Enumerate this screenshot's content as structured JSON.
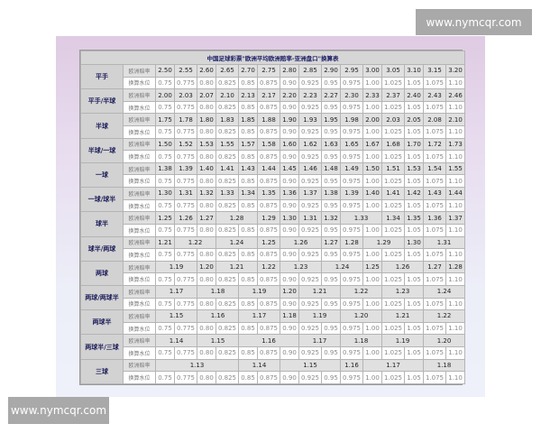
{
  "watermark": "www.nymcqr.com",
  "table": {
    "title": "中国足球彩票\"欧洲平均欧洲赔率-亚洲盘口\"换算表",
    "odds_label": "欧洲赔率",
    "water_label": "换算水位",
    "water": [
      "0.75",
      "0.775",
      "0.80",
      "0.825",
      "0.85",
      "0.875",
      "0.90",
      "0.925",
      "0.95",
      "0.975",
      "1.00",
      "1.025",
      "1.05",
      "1.075",
      "1.10"
    ],
    "groups": [
      {
        "label": "平手",
        "odds": [
          {
            "v": "2.50",
            "s": 1
          },
          {
            "v": "2.55",
            "s": 1
          },
          {
            "v": "2.60",
            "s": 1
          },
          {
            "v": "2.65",
            "s": 1
          },
          {
            "v": "2.70",
            "s": 1
          },
          {
            "v": "2.75",
            "s": 1
          },
          {
            "v": "2.80",
            "s": 1
          },
          {
            "v": "2.85",
            "s": 1
          },
          {
            "v": "2.90",
            "s": 1
          },
          {
            "v": "2.95",
            "s": 1
          },
          {
            "v": "3.00",
            "s": 1
          },
          {
            "v": "3.05",
            "s": 1
          },
          {
            "v": "3.10",
            "s": 1
          },
          {
            "v": "3.15",
            "s": 1
          },
          {
            "v": "3.20",
            "s": 1
          }
        ]
      },
      {
        "label": "平手/半球",
        "odds": [
          {
            "v": "2.00",
            "s": 1
          },
          {
            "v": "2.03",
            "s": 1
          },
          {
            "v": "2.07",
            "s": 1
          },
          {
            "v": "2.10",
            "s": 1
          },
          {
            "v": "2.13",
            "s": 1
          },
          {
            "v": "2.17",
            "s": 1
          },
          {
            "v": "2.20",
            "s": 1
          },
          {
            "v": "2.23",
            "s": 1
          },
          {
            "v": "2.27",
            "s": 1
          },
          {
            "v": "2.30",
            "s": 1
          },
          {
            "v": "2.33",
            "s": 1
          },
          {
            "v": "2.37",
            "s": 1
          },
          {
            "v": "2.40",
            "s": 1
          },
          {
            "v": "2.43",
            "s": 1
          },
          {
            "v": "2.46",
            "s": 1
          }
        ]
      },
      {
        "label": "半球",
        "odds": [
          {
            "v": "1.75",
            "s": 1
          },
          {
            "v": "1.78",
            "s": 1
          },
          {
            "v": "1.80",
            "s": 1
          },
          {
            "v": "1.83",
            "s": 1
          },
          {
            "v": "1.85",
            "s": 1
          },
          {
            "v": "1.88",
            "s": 1
          },
          {
            "v": "1.90",
            "s": 1
          },
          {
            "v": "1.93",
            "s": 1
          },
          {
            "v": "1.95",
            "s": 1
          },
          {
            "v": "1.98",
            "s": 1
          },
          {
            "v": "2.00",
            "s": 1
          },
          {
            "v": "2.03",
            "s": 1
          },
          {
            "v": "2.05",
            "s": 1
          },
          {
            "v": "2.08",
            "s": 1
          },
          {
            "v": "2.10",
            "s": 1
          }
        ]
      },
      {
        "label": "半球/一球",
        "odds": [
          {
            "v": "1.50",
            "s": 1
          },
          {
            "v": "1.52",
            "s": 1
          },
          {
            "v": "1.53",
            "s": 1
          },
          {
            "v": "1.55",
            "s": 1
          },
          {
            "v": "1.57",
            "s": 1
          },
          {
            "v": "1.58",
            "s": 1
          },
          {
            "v": "1.60",
            "s": 1
          },
          {
            "v": "1.62",
            "s": 1
          },
          {
            "v": "1.63",
            "s": 1
          },
          {
            "v": "1.65",
            "s": 1
          },
          {
            "v": "1.67",
            "s": 1
          },
          {
            "v": "1.68",
            "s": 1
          },
          {
            "v": "1.70",
            "s": 1
          },
          {
            "v": "1.72",
            "s": 1
          },
          {
            "v": "1.73",
            "s": 1
          }
        ]
      },
      {
        "label": "一球",
        "odds": [
          {
            "v": "1.38",
            "s": 1
          },
          {
            "v": "1.39",
            "s": 1
          },
          {
            "v": "1.40",
            "s": 1
          },
          {
            "v": "1.41",
            "s": 1
          },
          {
            "v": "1.43",
            "s": 1
          },
          {
            "v": "1.44",
            "s": 1
          },
          {
            "v": "1.45",
            "s": 1
          },
          {
            "v": "1.46",
            "s": 1
          },
          {
            "v": "1.48",
            "s": 1
          },
          {
            "v": "1.49",
            "s": 1
          },
          {
            "v": "1.50",
            "s": 1
          },
          {
            "v": "1.51",
            "s": 1
          },
          {
            "v": "1.53",
            "s": 1
          },
          {
            "v": "1.54",
            "s": 1
          },
          {
            "v": "1.55",
            "s": 1
          }
        ]
      },
      {
        "label": "一球/球半",
        "odds": [
          {
            "v": "1.30",
            "s": 1
          },
          {
            "v": "1.31",
            "s": 1
          },
          {
            "v": "1.32",
            "s": 1
          },
          {
            "v": "1.33",
            "s": 1
          },
          {
            "v": "1.34",
            "s": 1
          },
          {
            "v": "1.35",
            "s": 1
          },
          {
            "v": "1.36",
            "s": 1
          },
          {
            "v": "1.37",
            "s": 1
          },
          {
            "v": "1.38",
            "s": 1
          },
          {
            "v": "1.39",
            "s": 1
          },
          {
            "v": "1.40",
            "s": 1
          },
          {
            "v": "1.41",
            "s": 1
          },
          {
            "v": "1.42",
            "s": 1
          },
          {
            "v": "1.43",
            "s": 1
          },
          {
            "v": "1.44",
            "s": 1
          }
        ]
      },
      {
        "label": "球半",
        "odds": [
          {
            "v": "1.25",
            "s": 1
          },
          {
            "v": "1.26",
            "s": 1
          },
          {
            "v": "1.27",
            "s": 1
          },
          {
            "v": "1.28",
            "s": 2
          },
          {
            "v": "1.29",
            "s": 1
          },
          {
            "v": "1.30",
            "s": 1
          },
          {
            "v": "1.31",
            "s": 1
          },
          {
            "v": "1.32",
            "s": 1
          },
          {
            "v": "1.33",
            "s": 2
          },
          {
            "v": "1.34",
            "s": 1
          },
          {
            "v": "1.35",
            "s": 1
          },
          {
            "v": "1.36",
            "s": 1
          },
          {
            "v": "1.37",
            "s": 1
          }
        ]
      },
      {
        "label": "球半/两球",
        "odds": [
          {
            "v": "1.21",
            "s": 1
          },
          {
            "v": "1.22",
            "s": 2
          },
          {
            "v": "1.24",
            "s": 2
          },
          {
            "v": "1.25",
            "s": 1
          },
          {
            "v": "1.26",
            "s": 2
          },
          {
            "v": "1.27",
            "s": 1
          },
          {
            "v": "1.28",
            "s": 1
          },
          {
            "v": "1.29",
            "s": 2
          },
          {
            "v": "1.30",
            "s": 1
          },
          {
            "v": "1.31",
            "s": 2
          }
        ]
      },
      {
        "label": "两球",
        "odds": [
          {
            "v": "1.19",
            "s": 2
          },
          {
            "v": "1.20",
            "s": 1
          },
          {
            "v": "1.21",
            "s": 2
          },
          {
            "v": "1.22",
            "s": 1
          },
          {
            "v": "1.23",
            "s": 2
          },
          {
            "v": "1.24",
            "s": 2
          },
          {
            "v": "1.25",
            "s": 1
          },
          {
            "v": "1.26",
            "s": 2
          },
          {
            "v": "1.27",
            "s": 1
          },
          {
            "v": "1.28",
            "s": 1
          }
        ]
      },
      {
        "label": "两球/两球半",
        "odds": [
          {
            "v": "1.17",
            "s": 2
          },
          {
            "v": "1.18",
            "s": 2
          },
          {
            "v": "1.19",
            "s": 2
          },
          {
            "v": "1.20",
            "s": 1
          },
          {
            "v": "1.21",
            "s": 2
          },
          {
            "v": "1.22",
            "s": 2
          },
          {
            "v": "1.23",
            "s": 2
          },
          {
            "v": "1.24",
            "s": 2
          }
        ]
      },
      {
        "label": "两球半",
        "odds": [
          {
            "v": "1.15",
            "s": 2
          },
          {
            "v": "1.16",
            "s": 2
          },
          {
            "v": "1.17",
            "s": 2
          },
          {
            "v": "1.18",
            "s": 1
          },
          {
            "v": "1.19",
            "s": 2
          },
          {
            "v": "1.20",
            "s": 2
          },
          {
            "v": "1.21",
            "s": 2
          },
          {
            "v": "1.22",
            "s": 2
          }
        ]
      },
      {
        "label": "两球半/三球",
        "odds": [
          {
            "v": "1.14",
            "s": 2
          },
          {
            "v": "1.15",
            "s": 2
          },
          {
            "v": "1.16",
            "s": 3
          },
          {
            "v": "1.17",
            "s": 2
          },
          {
            "v": "1.18",
            "s": 2
          },
          {
            "v": "1.19",
            "s": 2
          },
          {
            "v": "1.20",
            "s": 2
          }
        ]
      },
      {
        "label": "三球",
        "odds": [
          {
            "v": "1.13",
            "s": 4
          },
          {
            "v": "1.14",
            "s": 2
          },
          {
            "v": "1.15",
            "s": 3
          },
          {
            "v": "1.16",
            "s": 1
          },
          {
            "v": "1.17",
            "s": 3
          },
          {
            "v": "1.18",
            "s": 2
          }
        ]
      }
    ]
  }
}
